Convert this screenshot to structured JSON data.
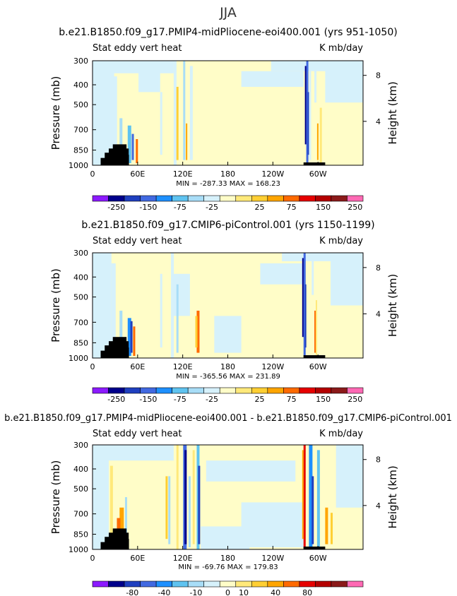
{
  "figure": {
    "title": "JJA"
  },
  "colorbar_colors": [
    "#8c1aff",
    "#00008b",
    "#1f3fbf",
    "#4169e1",
    "#1e90ff",
    "#5fc3f0",
    "#a8ddf7",
    "#d6f1fb",
    "#fffdc8",
    "#ffe97a",
    "#ffcf33",
    "#ffa500",
    "#ff6a00",
    "#e60000",
    "#b40000",
    "#8b1a1a",
    "#ff69b4"
  ],
  "chart_data": [
    {
      "type": "heatmap",
      "title": "b.e21.B1850.f09_g17.PMIP4-midPliocene-eoi400.001 (yrs 951-1050)",
      "left_string": "Stat eddy vert heat",
      "right_string": "K mb/day",
      "ylabel": "Pressure (mb)",
      "y2label": "Height (km)",
      "xticks": [
        "0",
        "60E",
        "120E",
        "180",
        "120W",
        "60W"
      ],
      "yticks": [
        "300",
        "400",
        "500",
        "700",
        "850",
        "1000"
      ],
      "y2ticks": [
        "8",
        "4"
      ],
      "stats": "MIN = -287.33   MAX = 168.23",
      "colorbar_labels": [
        "-250",
        "-150",
        "-75",
        "-25",
        "25",
        "75",
        "150",
        "250"
      ],
      "min": -287.33,
      "max": 168.23
    },
    {
      "type": "heatmap",
      "title": "b.e21.B1850.f09_g17.CMIP6-piControl.001 (yrs 1150-1199)",
      "left_string": "Stat eddy vert heat",
      "right_string": "K mb/day",
      "ylabel": "Pressure (mb)",
      "y2label": "Height (km)",
      "xticks": [
        "0",
        "60E",
        "120E",
        "180",
        "120W",
        "60W"
      ],
      "yticks": [
        "300",
        "400",
        "500",
        "700",
        "850",
        "1000"
      ],
      "y2ticks": [
        "8",
        "4"
      ],
      "stats": "MIN = -365.56   MAX = 231.89",
      "colorbar_labels": [
        "-250",
        "-150",
        "-75",
        "-25",
        "25",
        "75",
        "150",
        "250"
      ],
      "min": -365.56,
      "max": 231.89
    },
    {
      "type": "heatmap",
      "title": "b.e21.B1850.f09_g17.PMIP4-midPliocene-eoi400.001 - b.e21.B1850.f09_g17.CMIP6-piControl.001",
      "left_string": "Stat eddy vert heat",
      "right_string": "K mb/day",
      "ylabel": "Pressure (mb)",
      "y2label": "Height (km)",
      "xticks": [
        "0",
        "60E",
        "120E",
        "180",
        "120W",
        "60W"
      ],
      "yticks": [
        "300",
        "400",
        "500",
        "700",
        "850",
        "1000"
      ],
      "y2ticks": [
        "8",
        "4"
      ],
      "stats": "MIN = -69.76   MAX = 179.83",
      "colorbar_labels": [
        "-80",
        "-40",
        "-10",
        "0",
        "10",
        "40",
        "80"
      ],
      "min": -69.76,
      "max": 179.83
    }
  ]
}
